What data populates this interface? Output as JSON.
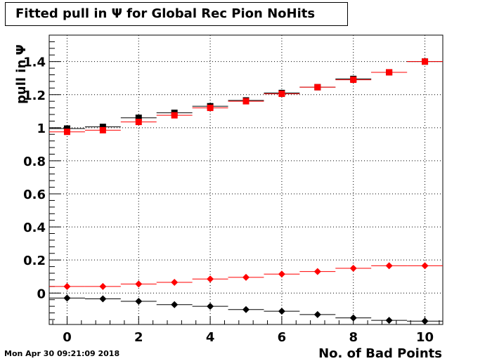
{
  "chart_data": {
    "type": "scatter",
    "title": "Fitted pull in  Ψ  for Global Rec Pion NoHits",
    "xlabel": "No. of Bad Points",
    "ylabel": "pull in  Ψ",
    "xlim": [
      -0.5,
      10.5
    ],
    "ylim": [
      -0.19,
      1.56
    ],
    "grid": true,
    "x": [
      0,
      1,
      2,
      3,
      4,
      5,
      6,
      7,
      8,
      9,
      10
    ],
    "xticks": [
      0,
      2,
      4,
      6,
      8,
      10
    ],
    "yticks": [
      0,
      0.2,
      0.4,
      0.6,
      0.8,
      1,
      1.2,
      1.4
    ],
    "ytick_labels": [
      "0",
      "0.2",
      "0.4",
      "0.6",
      "0.8",
      "1",
      "1.2",
      "1.4"
    ],
    "xtick_labels": [
      "0",
      "2",
      "4",
      "6",
      "8",
      "10"
    ],
    "series": [
      {
        "marker": "square",
        "color": "#000000",
        "values": [
          0.995,
          1.005,
          1.06,
          1.09,
          1.13,
          1.165,
          1.21,
          1.245,
          1.295,
          1.335,
          1.4
        ]
      },
      {
        "marker": "square",
        "color": "#ff0000",
        "values": [
          0.975,
          0.985,
          1.035,
          1.075,
          1.12,
          1.16,
          1.205,
          1.245,
          1.29,
          1.335,
          1.4
        ]
      },
      {
        "marker": "diamond",
        "color": "#ff0000",
        "values": [
          0.04,
          0.04,
          0.055,
          0.065,
          0.085,
          0.095,
          0.115,
          0.13,
          0.15,
          0.165,
          0.165
        ]
      },
      {
        "marker": "diamond",
        "color": "#000000",
        "values": [
          -0.03,
          -0.035,
          -0.05,
          -0.07,
          -0.08,
          -0.1,
          -0.11,
          -0.13,
          -0.15,
          -0.165,
          -0.17
        ]
      }
    ]
  },
  "footer": {
    "date": "Mon Apr 30 09:21:09 2018"
  }
}
